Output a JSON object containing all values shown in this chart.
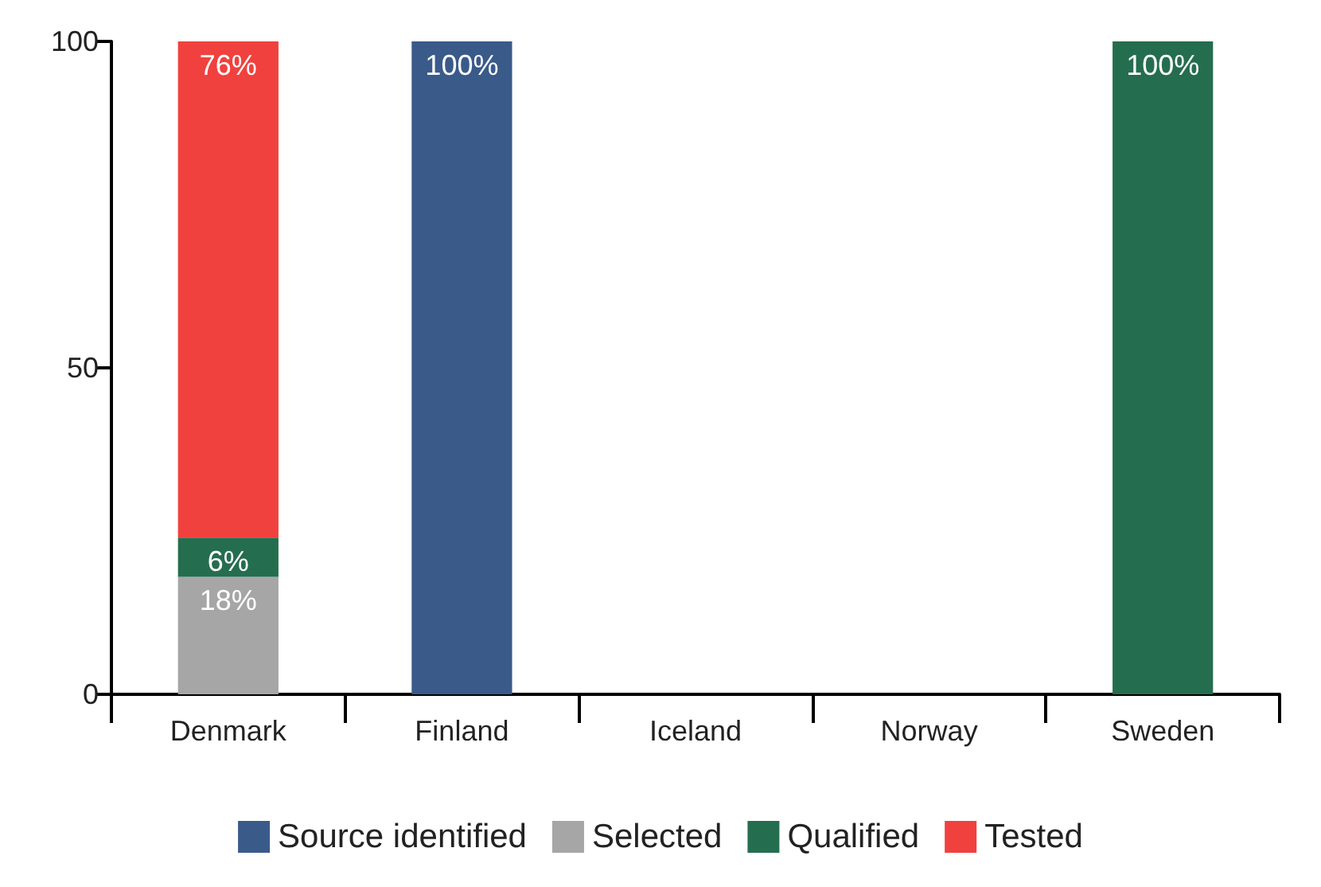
{
  "chart_data": {
    "type": "bar",
    "stacked": true,
    "categories": [
      "Denmark",
      "Finland",
      "Iceland",
      "Norway",
      "Sweden"
    ],
    "series": [
      {
        "name": "Source identified",
        "color": "#3a5a8a",
        "values": [
          null,
          100,
          null,
          null,
          null
        ],
        "value_labels": [
          null,
          "100%",
          null,
          null,
          null
        ]
      },
      {
        "name": "Selected",
        "color": "#a6a6a6",
        "values": [
          18,
          null,
          null,
          null,
          null
        ],
        "value_labels": [
          "18%",
          null,
          null,
          null,
          null
        ]
      },
      {
        "name": "Qualified",
        "color": "#256d4f",
        "values": [
          6,
          null,
          null,
          null,
          100
        ],
        "value_labels": [
          "6%",
          null,
          null,
          null,
          "100%"
        ]
      },
      {
        "name": "Tested",
        "color": "#f0413e",
        "values": [
          76,
          null,
          null,
          null,
          null
        ],
        "value_labels": [
          "76%",
          null,
          null,
          null,
          null
        ]
      }
    ],
    "ylim": [
      0,
      100
    ],
    "yticks": [
      0,
      50,
      100
    ],
    "grid": false,
    "legend": "bottom"
  }
}
